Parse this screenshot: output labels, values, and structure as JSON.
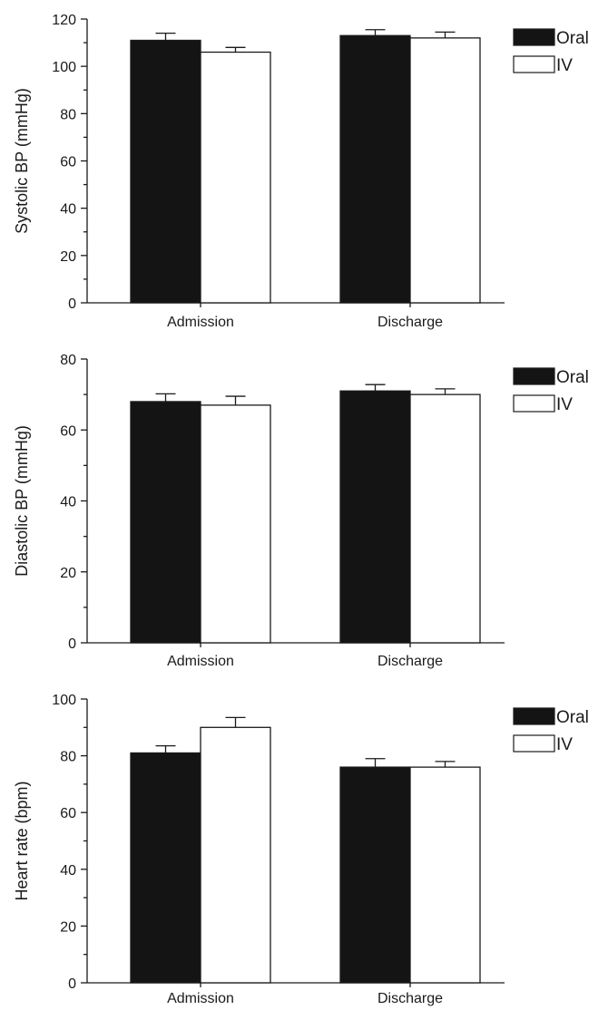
{
  "chart_data": [
    {
      "type": "bar",
      "categories": [
        "Admission",
        "Discharge"
      ],
      "ylabel": "Systolic BP (mmHg)",
      "ylim": [
        0,
        120
      ],
      "yticks": [
        0,
        20,
        40,
        60,
        80,
        100,
        120
      ],
      "legend": "top-right",
      "series": [
        {
          "name": "Oral",
          "color": "#141414",
          "values": [
            111,
            113
          ],
          "errors": [
            3,
            2.5
          ]
        },
        {
          "name": "IV",
          "color": "#ffffff",
          "values": [
            106,
            112
          ],
          "errors": [
            2,
            2.5
          ]
        }
      ]
    },
    {
      "type": "bar",
      "categories": [
        "Admission",
        "Discharge"
      ],
      "ylabel": "Diastolic BP (mmHg)",
      "ylim": [
        0,
        80
      ],
      "yticks": [
        0,
        20,
        40,
        60,
        80
      ],
      "legend": "top-right",
      "series": [
        {
          "name": "Oral",
          "color": "#141414",
          "values": [
            68,
            71
          ],
          "errors": [
            2.2,
            1.8
          ]
        },
        {
          "name": "IV",
          "color": "#ffffff",
          "values": [
            67,
            70
          ],
          "errors": [
            2.5,
            1.6
          ]
        }
      ]
    },
    {
      "type": "bar",
      "categories": [
        "Admission",
        "Discharge"
      ],
      "ylabel": "Heart rate (bpm)",
      "ylim": [
        0,
        100
      ],
      "yticks": [
        0,
        20,
        40,
        60,
        80,
        100
      ],
      "legend": "top-right",
      "series": [
        {
          "name": "Oral",
          "color": "#141414",
          "values": [
            81,
            76
          ],
          "errors": [
            2.5,
            3
          ]
        },
        {
          "name": "IV",
          "color": "#ffffff",
          "values": [
            90,
            76
          ],
          "errors": [
            3.5,
            2
          ]
        }
      ]
    }
  ]
}
